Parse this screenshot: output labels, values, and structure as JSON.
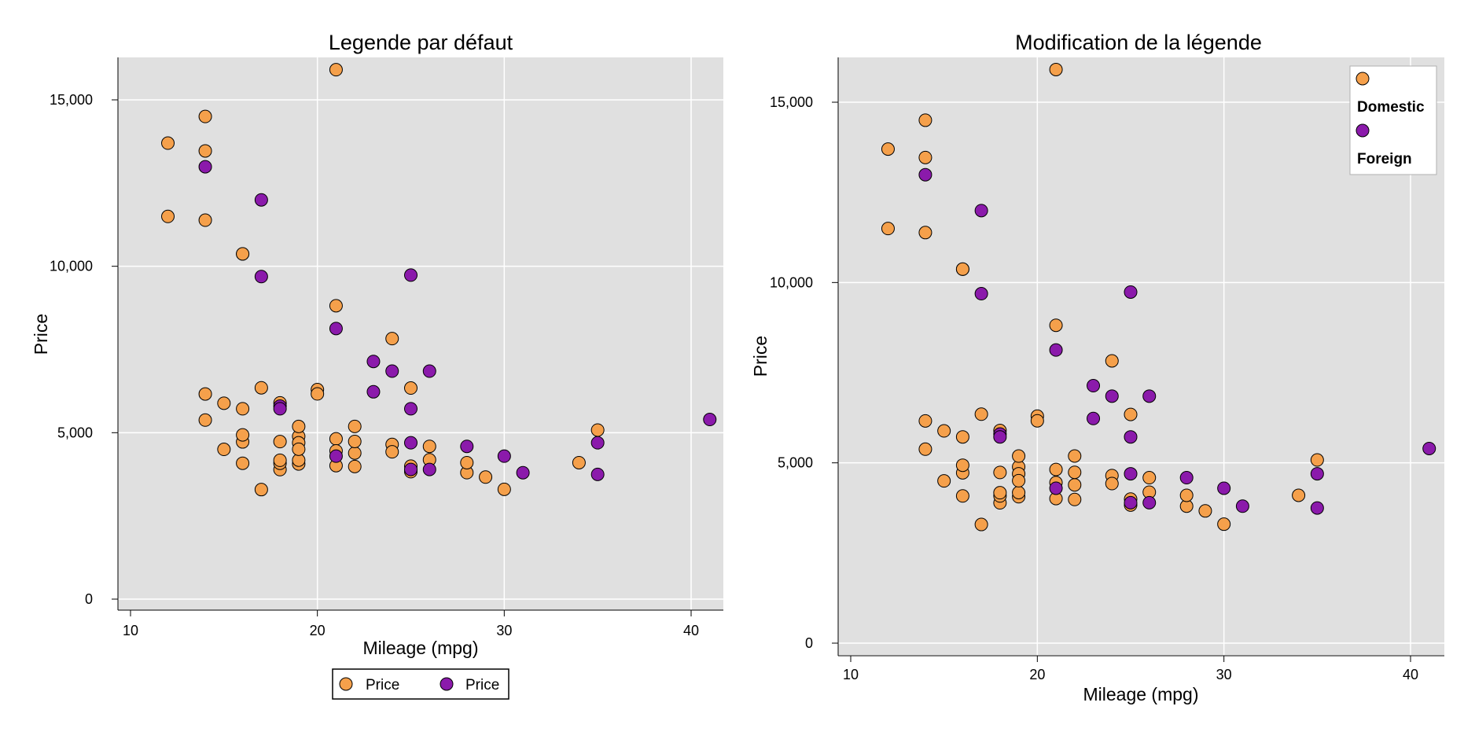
{
  "chart_data": [
    {
      "type": "scatter",
      "title": "Legende par défaut",
      "xlabel": "Mileage (mpg)",
      "ylabel": "Price",
      "xlim": [
        10,
        41
      ],
      "ylim": [
        0,
        16000
      ],
      "xticks": [
        10,
        20,
        30,
        40
      ],
      "xtick_labels": [
        "10",
        "20",
        "30",
        "40"
      ],
      "yticks": [
        0,
        5000,
        10000,
        15000
      ],
      "ytick_labels": [
        "0",
        "5,000",
        "10,000",
        "15,000"
      ],
      "grid": true,
      "legend_position": "bottom",
      "legend_entries": [
        "Price",
        "Price"
      ],
      "series": [
        {
          "name": "Price",
          "color": "#F5A04B",
          "points": [
            [
              12,
              11497
            ],
            [
              12,
              13700
            ],
            [
              14,
              13466
            ],
            [
              14,
              14500
            ],
            [
              14,
              11385
            ],
            [
              14,
              6163
            ],
            [
              14,
              5379
            ],
            [
              15,
              4499
            ],
            [
              15,
              5886
            ],
            [
              16,
              10371
            ],
            [
              16,
              10372
            ],
            [
              16,
              4723
            ],
            [
              16,
              5719
            ],
            [
              16,
              4934
            ],
            [
              17,
              3291
            ],
            [
              17,
              6349
            ],
            [
              18,
              3891
            ],
            [
              18,
              4082
            ],
            [
              18,
              4172
            ],
            [
              18,
              4733
            ],
            [
              18,
              5897
            ],
            [
              19,
              4060
            ],
            [
              19,
              4175
            ],
            [
              19,
              4890
            ],
            [
              19,
              4697
            ],
            [
              19,
              5188
            ],
            [
              19,
              4504
            ],
            [
              20,
              6295
            ],
            [
              20,
              6165
            ],
            [
              21,
              4010
            ],
            [
              21,
              4816
            ],
            [
              21,
              4453
            ],
            [
              22,
              4389
            ],
            [
              22,
              4737
            ],
            [
              22,
              3984
            ],
            [
              22,
              5189
            ],
            [
              24,
              4647
            ],
            [
              24,
              4425
            ],
            [
              25,
              3995
            ],
            [
              25,
              3829
            ],
            [
              26,
              4589
            ],
            [
              26,
              4187
            ],
            [
              28,
              3799
            ],
            [
              28,
              4099
            ],
            [
              29,
              3667
            ],
            [
              30,
              3299
            ],
            [
              34,
              4099
            ],
            [
              35,
              5079
            ],
            [
              21,
              15906
            ],
            [
              21,
              8814
            ],
            [
              24,
              7827
            ],
            [
              25,
              6342
            ],
            [
              16,
              4082
            ]
          ]
        },
        {
          "name": "Price",
          "color": "#8B1AAB",
          "points": [
            [
              14,
              12990
            ],
            [
              17,
              11995
            ],
            [
              17,
              9690
            ],
            [
              18,
              5799
            ],
            [
              18,
              5719
            ],
            [
              21,
              4296
            ],
            [
              21,
              8129
            ],
            [
              23,
              6229
            ],
            [
              23,
              7140
            ],
            [
              24,
              6850
            ],
            [
              25,
              4697
            ],
            [
              25,
              5719
            ],
            [
              25,
              9735
            ],
            [
              26,
              6850
            ],
            [
              26,
              3895
            ],
            [
              28,
              4589
            ],
            [
              30,
              4296
            ],
            [
              31,
              3798
            ],
            [
              35,
              4697
            ],
            [
              35,
              3748
            ],
            [
              41,
              5397
            ],
            [
              25,
              3895
            ]
          ]
        }
      ]
    },
    {
      "type": "scatter",
      "title": "Modification de la légende",
      "xlabel": "Mileage (mpg)",
      "ylabel": "Price",
      "xlim": [
        10,
        41
      ],
      "ylim": [
        0,
        16000
      ],
      "xticks": [
        10,
        20,
        30,
        40
      ],
      "xtick_labels": [
        "10",
        "20",
        "30",
        "40"
      ],
      "yticks": [
        0,
        5000,
        10000,
        15000
      ],
      "ytick_labels": [
        "0",
        "5,000",
        "10,000",
        "15,000"
      ],
      "grid": true,
      "legend_position": "top-right",
      "legend_entries": [
        "Domestic",
        "Foreign"
      ],
      "series": [
        {
          "name": "Domestic",
          "color": "#F5A04B",
          "points": [
            [
              12,
              11497
            ],
            [
              12,
              13700
            ],
            [
              14,
              13466
            ],
            [
              14,
              14500
            ],
            [
              14,
              11385
            ],
            [
              14,
              6163
            ],
            [
              14,
              5379
            ],
            [
              15,
              4499
            ],
            [
              15,
              5886
            ],
            [
              16,
              10371
            ],
            [
              16,
              10372
            ],
            [
              16,
              4723
            ],
            [
              16,
              5719
            ],
            [
              16,
              4934
            ],
            [
              17,
              3291
            ],
            [
              17,
              6349
            ],
            [
              18,
              3891
            ],
            [
              18,
              4082
            ],
            [
              18,
              4172
            ],
            [
              18,
              4733
            ],
            [
              18,
              5897
            ],
            [
              19,
              4060
            ],
            [
              19,
              4175
            ],
            [
              19,
              4890
            ],
            [
              19,
              4697
            ],
            [
              19,
              5188
            ],
            [
              19,
              4504
            ],
            [
              20,
              6295
            ],
            [
              20,
              6165
            ],
            [
              21,
              4010
            ],
            [
              21,
              4816
            ],
            [
              21,
              4453
            ],
            [
              22,
              4389
            ],
            [
              22,
              4737
            ],
            [
              22,
              3984
            ],
            [
              22,
              5189
            ],
            [
              24,
              4647
            ],
            [
              24,
              4425
            ],
            [
              25,
              3995
            ],
            [
              25,
              3829
            ],
            [
              26,
              4589
            ],
            [
              26,
              4187
            ],
            [
              28,
              3799
            ],
            [
              28,
              4099
            ],
            [
              29,
              3667
            ],
            [
              30,
              3299
            ],
            [
              34,
              4099
            ],
            [
              35,
              5079
            ],
            [
              21,
              15906
            ],
            [
              21,
              8814
            ],
            [
              24,
              7827
            ],
            [
              25,
              6342
            ],
            [
              16,
              4082
            ]
          ]
        },
        {
          "name": "Foreign",
          "color": "#8B1AAB",
          "points": [
            [
              14,
              12990
            ],
            [
              17,
              11995
            ],
            [
              17,
              9690
            ],
            [
              18,
              5799
            ],
            [
              18,
              5719
            ],
            [
              21,
              4296
            ],
            [
              21,
              8129
            ],
            [
              23,
              6229
            ],
            [
              23,
              7140
            ],
            [
              24,
              6850
            ],
            [
              25,
              4697
            ],
            [
              25,
              5719
            ],
            [
              25,
              9735
            ],
            [
              26,
              6850
            ],
            [
              26,
              3895
            ],
            [
              28,
              4589
            ],
            [
              30,
              4296
            ],
            [
              31,
              3798
            ],
            [
              35,
              4697
            ],
            [
              35,
              3748
            ],
            [
              41,
              5397
            ],
            [
              25,
              3895
            ]
          ]
        }
      ]
    }
  ]
}
